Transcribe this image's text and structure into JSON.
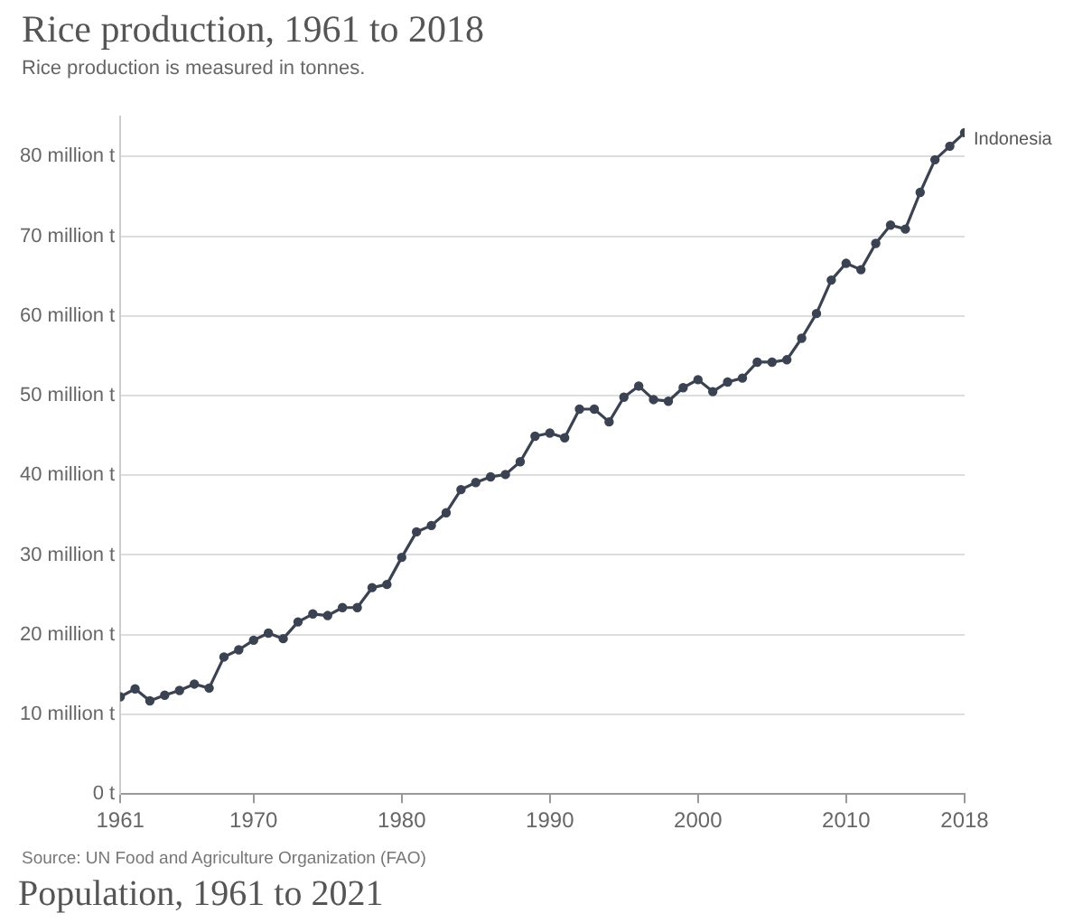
{
  "chart_data": {
    "type": "line",
    "title": "Rice production, 1961 to 2018",
    "subtitle": "Rice production is measured in tonnes.",
    "x": [
      1961,
      1962,
      1963,
      1964,
      1965,
      1966,
      1967,
      1968,
      1969,
      1970,
      1971,
      1972,
      1973,
      1974,
      1975,
      1976,
      1977,
      1978,
      1979,
      1980,
      1981,
      1982,
      1983,
      1984,
      1985,
      1986,
      1987,
      1988,
      1989,
      1990,
      1991,
      1992,
      1993,
      1994,
      1995,
      1996,
      1997,
      1998,
      1999,
      2000,
      2001,
      2002,
      2003,
      2004,
      2005,
      2006,
      2007,
      2008,
      2009,
      2010,
      2011,
      2012,
      2013,
      2014,
      2015,
      2016,
      2017,
      2018
    ],
    "series": [
      {
        "name": "Indonesia",
        "color": "#3b4252",
        "values": [
          12.2,
          13.2,
          11.7,
          12.4,
          13.0,
          13.8,
          13.3,
          17.2,
          18.1,
          19.3,
          20.2,
          19.5,
          21.6,
          22.6,
          22.4,
          23.4,
          23.4,
          25.9,
          26.3,
          29.7,
          32.9,
          33.7,
          35.3,
          38.2,
          39.1,
          39.8,
          40.1,
          41.7,
          44.9,
          45.3,
          44.7,
          48.3,
          48.3,
          46.7,
          49.8,
          51.2,
          49.5,
          49.3,
          51.0,
          52.0,
          50.5,
          51.7,
          52.2,
          54.2,
          54.2,
          54.5,
          57.2,
          60.3,
          64.5,
          66.6,
          65.8,
          69.1,
          71.4,
          70.9,
          75.5,
          79.6,
          81.3,
          83.0
        ]
      }
    ],
    "xlim": [
      1961,
      2018
    ],
    "xticks": [
      1961,
      1970,
      1980,
      1990,
      2000,
      2010,
      2018
    ],
    "ylim": [
      0,
      85
    ],
    "yticks": [
      {
        "value": 0,
        "label": "0 t"
      },
      {
        "value": 10,
        "label": "10 million t"
      },
      {
        "value": 20,
        "label": "20 million t"
      },
      {
        "value": 30,
        "label": "30 million t"
      },
      {
        "value": 40,
        "label": "40 million t"
      },
      {
        "value": 50,
        "label": "50 million t"
      },
      {
        "value": 60,
        "label": "60 million t"
      },
      {
        "value": 70,
        "label": "70 million t"
      },
      {
        "value": 80,
        "label": "80 million t"
      }
    ],
    "grid": "y",
    "legend": false,
    "marker": "circle",
    "line_style": "solid",
    "annotations": [
      "Source: UN Food and Agriculture Organization (FAO)",
      "Population, 1961 to 2021"
    ]
  }
}
